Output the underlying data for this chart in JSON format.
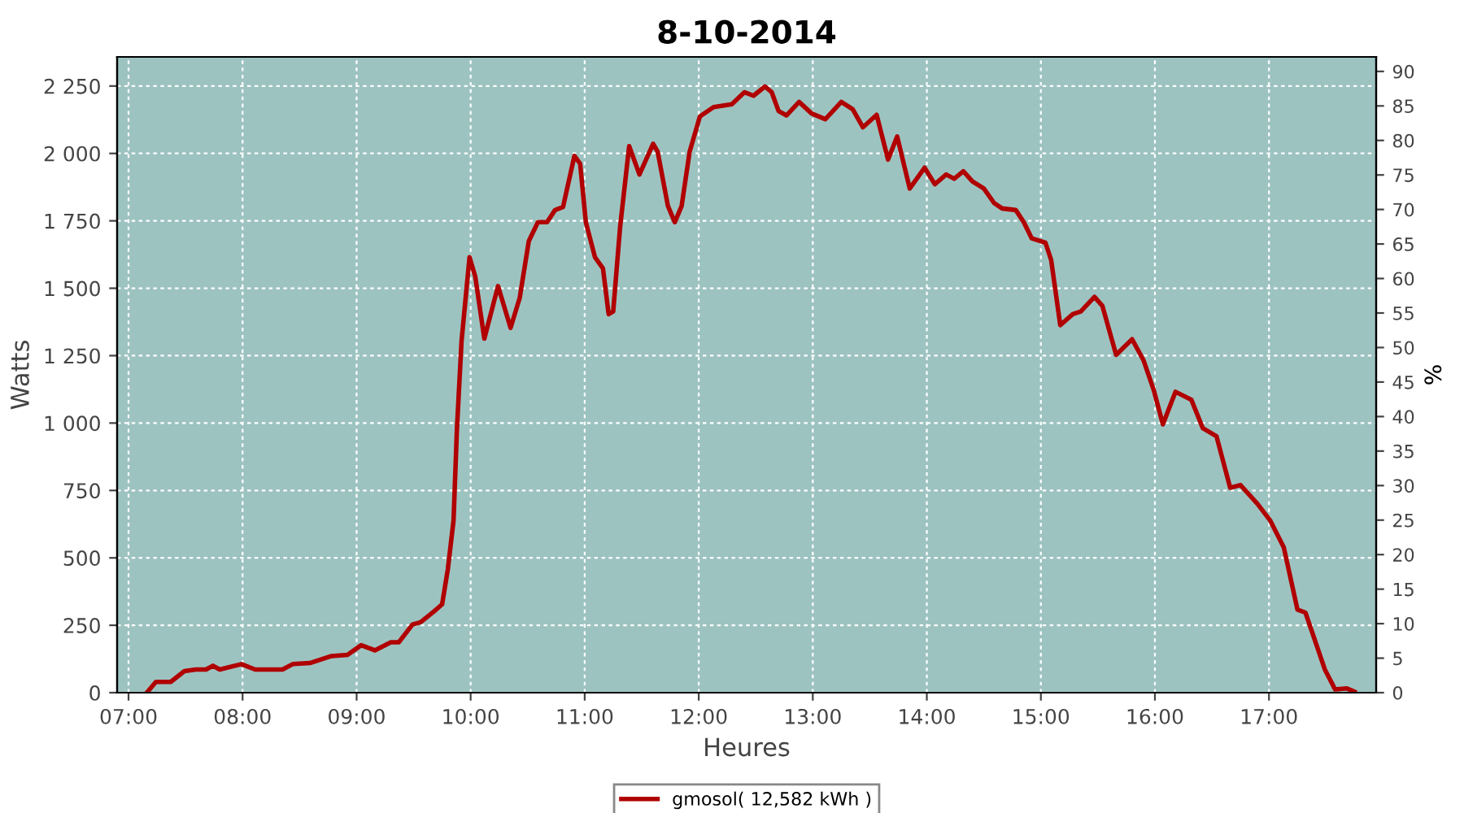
{
  "chart_data": {
    "type": "line",
    "title": "8-10-2014",
    "xlabel": "Heures",
    "ylabel": "Watts",
    "y2label": "%",
    "x": [
      7.16,
      7.24,
      7.37,
      7.49,
      7.59,
      7.68,
      7.74,
      7.8,
      7.99,
      8.11,
      8.35,
      8.44,
      8.59,
      8.78,
      8.92,
      9.04,
      9.16,
      9.3,
      9.37,
      9.49,
      9.56,
      9.68,
      9.75,
      9.8,
      9.85,
      9.88,
      9.92,
      9.99,
      10.04,
      10.12,
      10.24,
      10.35,
      10.43,
      10.51,
      10.59,
      10.67,
      10.74,
      10.81,
      10.91,
      10.96,
      11.01,
      11.09,
      11.16,
      11.21,
      11.25,
      11.31,
      11.39,
      11.48,
      11.6,
      11.64,
      11.73,
      11.79,
      11.85,
      11.92,
      12.01,
      12.13,
      12.29,
      12.4,
      12.48,
      12.58,
      12.64,
      12.7,
      12.77,
      12.88,
      12.99,
      13.11,
      13.25,
      13.35,
      13.44,
      13.56,
      13.66,
      13.74,
      13.85,
      13.98,
      14.07,
      14.17,
      14.24,
      14.32,
      14.4,
      14.5,
      14.59,
      14.66,
      14.78,
      14.85,
      14.92,
      15.04,
      15.09,
      15.17,
      15.28,
      15.35,
      15.47,
      15.54,
      15.66,
      15.8,
      15.9,
      15.99,
      16.07,
      16.18,
      16.32,
      16.42,
      16.54,
      16.66,
      16.75,
      16.9,
      17.01,
      17.13,
      17.25,
      17.32,
      17.49,
      17.58,
      17.68,
      17.75
    ],
    "series": [
      {
        "name": "gmosol( 12,582 kWh )",
        "color": "#b00000",
        "values": [
          0,
          40,
          40,
          80,
          86,
          86,
          100,
          86,
          106,
          86,
          86,
          106,
          110,
          136,
          140,
          176,
          157,
          187,
          187,
          253,
          261,
          302,
          328,
          458,
          639,
          981,
          1303,
          1615,
          1544,
          1313,
          1508,
          1353,
          1464,
          1675,
          1745,
          1745,
          1790,
          1801,
          1991,
          1962,
          1745,
          1615,
          1574,
          1404,
          1414,
          1725,
          2027,
          1922,
          2036,
          2006,
          1805,
          1745,
          1805,
          2006,
          2137,
          2172,
          2182,
          2227,
          2214,
          2248,
          2227,
          2157,
          2141,
          2191,
          2148,
          2127,
          2191,
          2164,
          2097,
          2143,
          1977,
          2063,
          1870,
          1947,
          1886,
          1922,
          1906,
          1934,
          1896,
          1870,
          1816,
          1796,
          1790,
          1745,
          1685,
          1669,
          1605,
          1363,
          1404,
          1414,
          1468,
          1434,
          1253,
          1311,
          1233,
          1122,
          995,
          1116,
          1086,
          981,
          951,
          760,
          770,
          700,
          639,
          539,
          308,
          297,
          86,
          12,
          16,
          4
        ]
      }
    ],
    "xlim": [
      6.9,
      17.94
    ],
    "xticks": [
      {
        "value": 7,
        "label": "07:00"
      },
      {
        "value": 8,
        "label": "08:00"
      },
      {
        "value": 9,
        "label": "09:00"
      },
      {
        "value": 10,
        "label": "10:00"
      },
      {
        "value": 11,
        "label": "11:00"
      },
      {
        "value": 12,
        "label": "12:00"
      },
      {
        "value": 13,
        "label": "13:00"
      },
      {
        "value": 14,
        "label": "14:00"
      },
      {
        "value": 15,
        "label": "15:00"
      },
      {
        "value": 16,
        "label": "16:00"
      },
      {
        "value": 17,
        "label": "17:00"
      }
    ],
    "ylim": [
      0,
      2358
    ],
    "yticks": [
      0,
      250,
      500,
      750,
      {
        "value": 1000,
        "label": "1 000"
      },
      {
        "value": 1250,
        "label": "1 250"
      },
      {
        "value": 1500,
        "label": "1 500"
      },
      {
        "value": 1750,
        "label": "1 750"
      },
      {
        "value": 2000,
        "label": "2 000"
      },
      {
        "value": 2250,
        "label": "2 250"
      }
    ],
    "y2lim": [
      0,
      92.1
    ],
    "y2ticks": [
      0,
      5,
      10,
      15,
      20,
      25,
      30,
      35,
      40,
      45,
      50,
      55,
      60,
      65,
      70,
      75,
      80,
      85,
      90
    ],
    "grid": true,
    "legend": "bottom",
    "marker": "none",
    "line_style": "solid"
  }
}
